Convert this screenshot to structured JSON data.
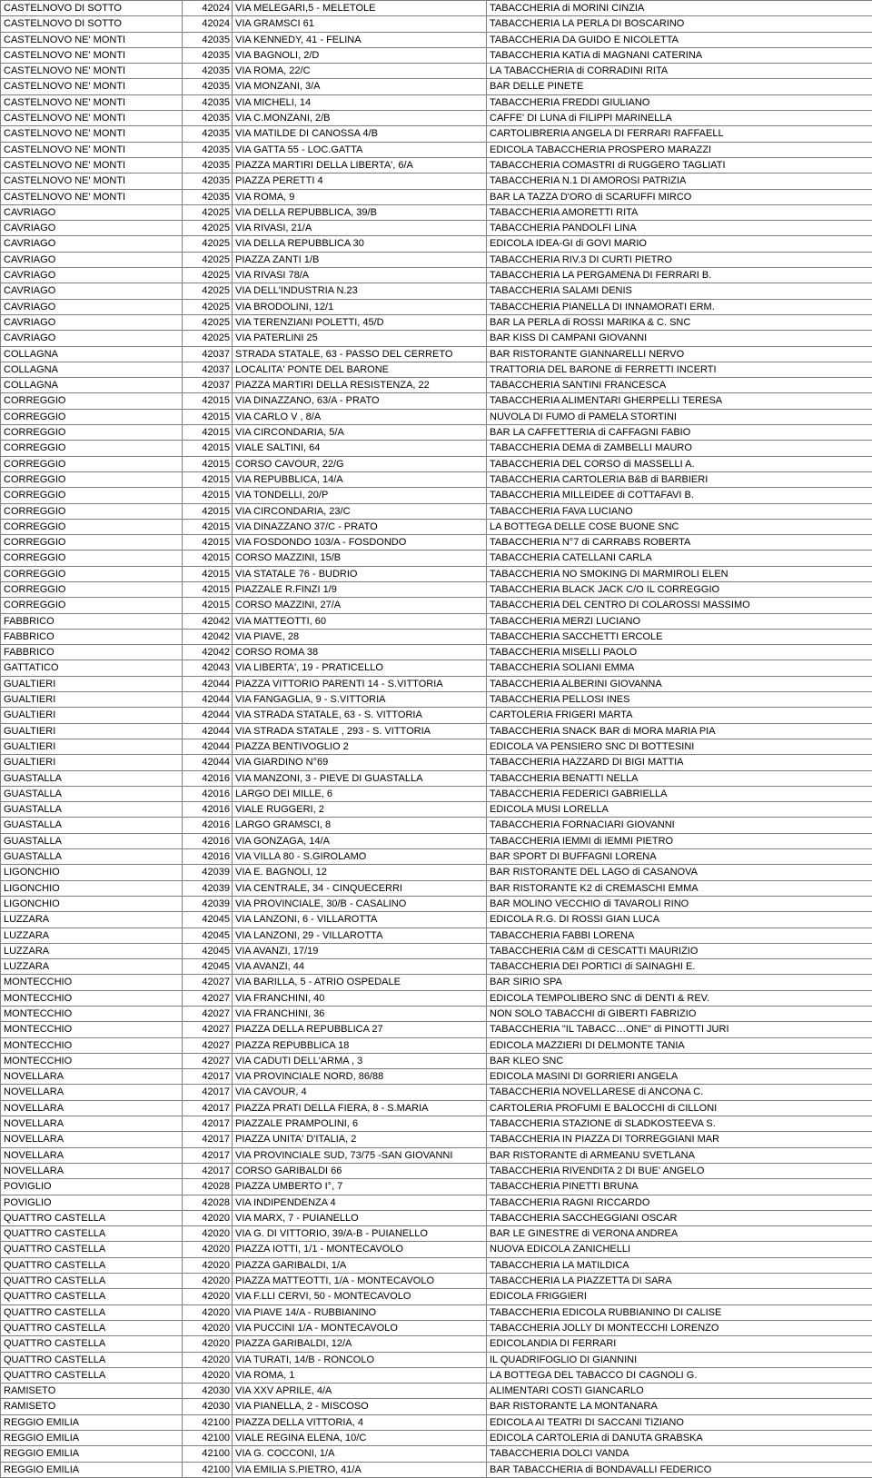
{
  "rows": [
    [
      "CASTELNOVO DI SOTTO",
      "42024",
      "VIA MELEGARI,5 - MELETOLE",
      "TABACCHERIA di MORINI CINZIA"
    ],
    [
      "CASTELNOVO DI SOTTO",
      "42024",
      "VIA GRAMSCI 61",
      "TABACCHERIA LA PERLA DI BOSCARINO"
    ],
    [
      "CASTELNOVO NE' MONTI",
      "42035",
      "VIA KENNEDY, 41 - FELINA",
      "TABACCHERIA DA GUIDO E NICOLETTA"
    ],
    [
      "CASTELNOVO NE' MONTI",
      "42035",
      "VIA BAGNOLI, 2/D",
      "TABACCHERIA KATIA di MAGNANI CATERINA"
    ],
    [
      "CASTELNOVO NE' MONTI",
      "42035",
      "VIA ROMA, 22/C",
      "LA TABACCHERIA di CORRADINI RITA"
    ],
    [
      "CASTELNOVO NE' MONTI",
      "42035",
      "VIA MONZANI, 3/A",
      "BAR DELLE PINETE"
    ],
    [
      "CASTELNOVO NE' MONTI",
      "42035",
      "VIA MICHELI, 14",
      "TABACCHERIA FREDDI GIULIANO"
    ],
    [
      "CASTELNOVO NE' MONTI",
      "42035",
      "VIA C.MONZANI, 2/B",
      "CAFFE' DI LUNA di FILIPPI MARINELLA"
    ],
    [
      "CASTELNOVO NE' MONTI",
      "42035",
      "VIA MATILDE DI CANOSSA 4/B",
      "CARTOLIBRERIA ANGELA DI FERRARI RAFFAELL"
    ],
    [
      "CASTELNOVO NE' MONTI",
      "42035",
      "VIA GATTA 55 - LOC.GATTA",
      "EDICOLA TABACCHERIA PROSPERO MARAZZI"
    ],
    [
      "CASTELNOVO NE' MONTI",
      "42035",
      "PIAZZA MARTIRI DELLA LIBERTA', 6/A",
      "TABACCHERIA COMASTRI di RUGGERO TAGLIATI"
    ],
    [
      "CASTELNOVO NE' MONTI",
      "42035",
      "PIAZZA PERETTI 4",
      "TABACCHERIA N.1 DI AMOROSI PATRIZIA"
    ],
    [
      "CASTELNOVO NE' MONTI",
      "42035",
      "VIA ROMA, 9",
      "BAR LA TAZZA D'ORO di SCARUFFI MIRCO"
    ],
    [
      "CAVRIAGO",
      "42025",
      "VIA DELLA REPUBBLICA, 39/B",
      "TABACCHERIA AMORETTI RITA"
    ],
    [
      "CAVRIAGO",
      "42025",
      "VIA RIVASI, 21/A",
      "TABACCHERIA PANDOLFI LINA"
    ],
    [
      "CAVRIAGO",
      "42025",
      "VIA DELLA REPUBBLICA 30",
      "EDICOLA IDEA-GI di GOVI MARIO"
    ],
    [
      "CAVRIAGO",
      "42025",
      "PIAZZA ZANTI 1/B",
      "TABACCHERIA RIV.3 DI CURTI PIETRO"
    ],
    [
      "CAVRIAGO",
      "42025",
      "VIA RIVASI 78/A",
      "TABACCHERIA LA PERGAMENA DI FERRARI B."
    ],
    [
      "CAVRIAGO",
      "42025",
      "VIA DELL'INDUSTRIA N.23",
      "TABACCHERIA SALAMI DENIS"
    ],
    [
      "CAVRIAGO",
      "42025",
      "VIA BRODOLINI, 12/1",
      "TABACCHERIA PIANELLA DI INNAMORATI ERM."
    ],
    [
      "CAVRIAGO",
      "42025",
      "VIA TERENZIANI POLETTI, 45/D",
      "BAR LA PERLA di ROSSI MARIKA & C. SNC"
    ],
    [
      "CAVRIAGO",
      "42025",
      "VIA PATERLINI 25",
      "BAR KISS DI CAMPANI GIOVANNI"
    ],
    [
      "COLLAGNA",
      "42037",
      "STRADA STATALE, 63 - PASSO DEL CERRETO",
      "BAR RISTORANTE GIANNARELLI NERVO"
    ],
    [
      "COLLAGNA",
      "42037",
      "LOCALITA' PONTE DEL BARONE",
      "TRATTORIA DEL BARONE di FERRETTI INCERTI"
    ],
    [
      "COLLAGNA",
      "42037",
      "PIAZZA MARTIRI DELLA RESISTENZA, 22",
      "TABACCHERIA SANTINI FRANCESCA"
    ],
    [
      "CORREGGIO",
      "42015",
      "VIA DINAZZANO, 63/A - PRATO",
      "TABACCHERIA ALIMENTARI GHERPELLI TERESA"
    ],
    [
      "CORREGGIO",
      "42015",
      "VIA CARLO V , 8/A",
      "NUVOLA DI FUMO di PAMELA STORTINI"
    ],
    [
      "CORREGGIO",
      "42015",
      "VIA CIRCONDARIA, 5/A",
      "BAR LA CAFFETTERIA di CAFFAGNI FABIO"
    ],
    [
      "CORREGGIO",
      "42015",
      "VIALE SALTINI, 64",
      "TABACCHERIA DEMA di ZAMBELLI MAURO"
    ],
    [
      "CORREGGIO",
      "42015",
      "CORSO CAVOUR, 22/G",
      "TABACCHERIA DEL CORSO di MASSELLI A."
    ],
    [
      "CORREGGIO",
      "42015",
      "VIA REPUBBLICA, 14/A",
      "TABACCHERIA CARTOLERIA B&B di BARBIERI"
    ],
    [
      "CORREGGIO",
      "42015",
      "VIA TONDELLI, 20/P",
      "TABACCHERIA MILLEIDEE di COTTAFAVI B."
    ],
    [
      "CORREGGIO",
      "42015",
      "VIA CIRCONDARIA, 23/C",
      "TABACCHERIA FAVA LUCIANO"
    ],
    [
      "CORREGGIO",
      "42015",
      "VIA DINAZZANO 37/C - PRATO",
      "LA BOTTEGA DELLE COSE BUONE SNC"
    ],
    [
      "CORREGGIO",
      "42015",
      "VIA FOSDONDO 103/A - FOSDONDO",
      "TABACCHERIA N°7 di CARRABS ROBERTA"
    ],
    [
      "CORREGGIO",
      "42015",
      "CORSO MAZZINI, 15/B",
      "TABACCHERIA CATELLANI CARLA"
    ],
    [
      "CORREGGIO",
      "42015",
      "VIA STATALE 76 - BUDRIO",
      "TABACCHERIA NO SMOKING DI MARMIROLI ELEN"
    ],
    [
      "CORREGGIO",
      "42015",
      "PIAZZALE R.FINZI 1/9",
      "TABACCHERIA BLACK JACK C/O IL CORREGGIO"
    ],
    [
      "CORREGGIO",
      "42015",
      "CORSO MAZZINI, 27/A",
      "TABACCHERIA DEL CENTRO DI COLAROSSI MASSIMO"
    ],
    [
      "FABBRICO",
      "42042",
      "VIA MATTEOTTI, 60",
      "TABACCHERIA MERZI LUCIANO"
    ],
    [
      "FABBRICO",
      "42042",
      "VIA PIAVE, 28",
      "TABACCHERIA SACCHETTI ERCOLE"
    ],
    [
      "FABBRICO",
      "42042",
      "CORSO ROMA 38",
      "TABACCHERIA MISELLI PAOLO"
    ],
    [
      "GATTATICO",
      "42043",
      "VIA LIBERTA', 19 - PRATICELLO",
      "TABACCHERIA SOLIANI EMMA"
    ],
    [
      "GUALTIERI",
      "42044",
      "PIAZZA VITTORIO PARENTI 14 - S.VITTORIA",
      "TABACCHERIA ALBERINI GIOVANNA"
    ],
    [
      "GUALTIERI",
      "42044",
      "VIA FANGAGLIA, 9 - S.VITTORIA",
      "TABACCHERIA PELLOSI INES"
    ],
    [
      "GUALTIERI",
      "42044",
      "VIA STRADA STATALE, 63 - S. VITTORIA",
      "CARTOLERIA FRIGERI MARTA"
    ],
    [
      "GUALTIERI",
      "42044",
      "VIA STRADA STATALE , 293 - S. VITTORIA",
      "TABACCHERIA SNACK BAR di MORA MARIA PIA"
    ],
    [
      "GUALTIERI",
      "42044",
      "PIAZZA BENTIVOGLIO 2",
      "EDICOLA VA PENSIERO SNC DI BOTTESINI"
    ],
    [
      "GUALTIERI",
      "42044",
      "VIA GIARDINO N°69",
      "TABACCHERIA HAZZARD DI BIGI MATTIA"
    ],
    [
      "GUASTALLA",
      "42016",
      "VIA MANZONI, 3 - PIEVE DI GUASTALLA",
      "TABACCHERIA BENATTI NELLA"
    ],
    [
      "GUASTALLA",
      "42016",
      "LARGO DEI MILLE, 6",
      "TABACCHERIA FEDERICI GABRIELLA"
    ],
    [
      "GUASTALLA",
      "42016",
      "VIALE RUGGERI, 2",
      "EDICOLA MUSI LORELLA"
    ],
    [
      "GUASTALLA",
      "42016",
      "LARGO GRAMSCI, 8",
      "TABACCHERIA FORNACIARI GIOVANNI"
    ],
    [
      "GUASTALLA",
      "42016",
      "VIA GONZAGA, 14/A",
      "TABACCHERIA IEMMI di IEMMI PIETRO"
    ],
    [
      "GUASTALLA",
      "42016",
      "VIA VILLA 80 - S.GIROLAMO",
      "BAR SPORT DI BUFFAGNI LORENA"
    ],
    [
      "LIGONCHIO",
      "42039",
      "VIA E. BAGNOLI, 12",
      "BAR RISTORANTE DEL LAGO di CASANOVA"
    ],
    [
      "LIGONCHIO",
      "42039",
      "VIA CENTRALE, 34 - CINQUECERRI",
      "BAR RISTORANTE K2 di CREMASCHI EMMA"
    ],
    [
      "LIGONCHIO",
      "42039",
      "VIA PROVINCIALE, 30/B - CASALINO",
      "BAR MOLINO VECCHIO di TAVAROLI RINO"
    ],
    [
      "LUZZARA",
      "42045",
      "VIA LANZONI, 6 - VILLAROTTA",
      "EDICOLA R.G. DI ROSSI GIAN LUCA"
    ],
    [
      "LUZZARA",
      "42045",
      "VIA LANZONI, 29 - VILLAROTTA",
      "TABACCHERIA FABBI LORENA"
    ],
    [
      "LUZZARA",
      "42045",
      "VIA AVANZI, 17/19",
      "TABACCHERIA C&M di CESCATTI MAURIZIO"
    ],
    [
      "LUZZARA",
      "42045",
      "VIA AVANZI, 44",
      "TABACCHERIA DEI PORTICI di SAINAGHI E."
    ],
    [
      "MONTECCHIO",
      "42027",
      "VIA BARILLA, 5 - ATRIO OSPEDALE",
      "BAR SIRIO SPA"
    ],
    [
      "MONTECCHIO",
      "42027",
      "VIA FRANCHINI, 40",
      "EDICOLA TEMPOLIBERO SNC di DENTI & REV."
    ],
    [
      "MONTECCHIO",
      "42027",
      "VIA FRANCHINI, 36",
      "NON SOLO TABACCHI di GIBERTI FABRIZIO"
    ],
    [
      "MONTECCHIO",
      "42027",
      "PIAZZA DELLA REPUBBLICA 27",
      "TABACCHERIA \"IL TABACC…ONE\" di PINOTTI JURI"
    ],
    [
      "MONTECCHIO",
      "42027",
      "PIAZZA REPUBBLICA 18",
      "EDICOLA MAZZIERI DI DELMONTE TANIA"
    ],
    [
      "MONTECCHIO",
      "42027",
      "VIA CADUTI DELL'ARMA , 3",
      "BAR KLEO SNC"
    ],
    [
      "NOVELLARA",
      "42017",
      "VIA PROVINCIALE NORD, 86/88",
      "EDICOLA MASINI DI GORRIERI ANGELA"
    ],
    [
      "NOVELLARA",
      "42017",
      "VIA CAVOUR, 4",
      "TABACCHERIA NOVELLARESE di ANCONA C."
    ],
    [
      "NOVELLARA",
      "42017",
      "PIAZZA PRATI DELLA FIERA, 8 - S.MARIA",
      "CARTOLERIA PROFUMI E BALOCCHI di CILLONI"
    ],
    [
      "NOVELLARA",
      "42017",
      "PIAZZALE PRAMPOLINI, 6",
      "TABACCHERIA STAZIONE di SLADKOSTEEVA S."
    ],
    [
      "NOVELLARA",
      "42017",
      "PIAZZA UNITA' D'ITALIA, 2",
      "TABACCHERIA IN PIAZZA DI TORREGGIANI MAR"
    ],
    [
      "NOVELLARA",
      "42017",
      "VIA PROVINCIALE SUD, 73/75 -SAN GIOVANNI",
      "BAR RISTORANTE di ARMEANU SVETLANA"
    ],
    [
      "NOVELLARA",
      "42017",
      "CORSO GARIBALDI 66",
      "TABACCHERIA RIVENDITA 2 DI BUE' ANGELO"
    ],
    [
      "POVIGLIO",
      "42028",
      "PIAZZA UMBERTO I°, 7",
      "TABACCHERIA PINETTI BRUNA"
    ],
    [
      "POVIGLIO",
      "42028",
      "VIA INDIPENDENZA 4",
      "TABACCHERIA RAGNI RICCARDO"
    ],
    [
      "QUATTRO CASTELLA",
      "42020",
      "VIA MARX, 7 - PUIANELLO",
      "TABACCHERIA SACCHEGGIANI OSCAR"
    ],
    [
      "QUATTRO CASTELLA",
      "42020",
      "VIA G. DI VITTORIO, 39/A-B - PUIANELLO",
      "BAR LE GINESTRE di VERONA ANDREA"
    ],
    [
      "QUATTRO CASTELLA",
      "42020",
      "PIAZZA IOTTI, 1/1 - MONTECAVOLO",
      "NUOVA EDICOLA ZANICHELLI"
    ],
    [
      "QUATTRO CASTELLA",
      "42020",
      "PIAZZA GARIBALDI, 1/A",
      "TABACCHERIA LA MATILDICA"
    ],
    [
      "QUATTRO CASTELLA",
      "42020",
      "PIAZZA MATTEOTTI, 1/A - MONTECAVOLO",
      "TABACCHERIA LA PIAZZETTA DI SARA"
    ],
    [
      "QUATTRO CASTELLA",
      "42020",
      "VIA F.LLI CERVI, 50 - MONTECAVOLO",
      "EDICOLA FRIGGIERI"
    ],
    [
      "QUATTRO CASTELLA",
      "42020",
      "VIA PIAVE 14/A - RUBBIANINO",
      "TABACCHERIA EDICOLA RUBBIANINO DI CALISE"
    ],
    [
      "QUATTRO CASTELLA",
      "42020",
      "VIA PUCCINI 1/A - MONTECAVOLO",
      "TABACCHERIA JOLLY DI MONTECCHI LORENZO"
    ],
    [
      "QUATTRO CASTELLA",
      "42020",
      "PIAZZA GARIBALDI, 12/A",
      "EDICOLANDIA DI FERRARI"
    ],
    [
      "QUATTRO CASTELLA",
      "42020",
      "VIA TURATI, 14/B - RONCOLO",
      "IL QUADRIFOGLIO DI GIANNINI"
    ],
    [
      "QUATTRO CASTELLA",
      "42020",
      "VIA ROMA, 1",
      "LA BOTTEGA DEL TABACCO DI CAGNOLI G."
    ],
    [
      "RAMISETO",
      "42030",
      "VIA XXV APRILE, 4/A",
      "ALIMENTARI COSTI GIANCARLO"
    ],
    [
      "RAMISETO",
      "42030",
      "VIA PIANELLA, 2 - MISCOSO",
      "BAR RISTORANTE LA MONTANARA"
    ],
    [
      "REGGIO EMILIA",
      "42100",
      "PIAZZA DELLA VITTORIA, 4",
      "EDICOLA AI TEATRI DI SACCANI TIZIANO"
    ],
    [
      "REGGIO EMILIA",
      "42100",
      "VIALE REGINA ELENA, 10/C",
      "EDICOLA CARTOLERIA di DANUTA GRABSKA"
    ],
    [
      "REGGIO EMILIA",
      "42100",
      "VIA G. COCCONI, 1/A",
      "TABACCHERIA DOLCI VANDA"
    ],
    [
      "REGGIO EMILIA",
      "42100",
      "VIA EMILIA S.PIETRO, 41/A",
      "BAR TABACCHERIA di BONDAVALLI FEDERICO"
    ]
  ]
}
